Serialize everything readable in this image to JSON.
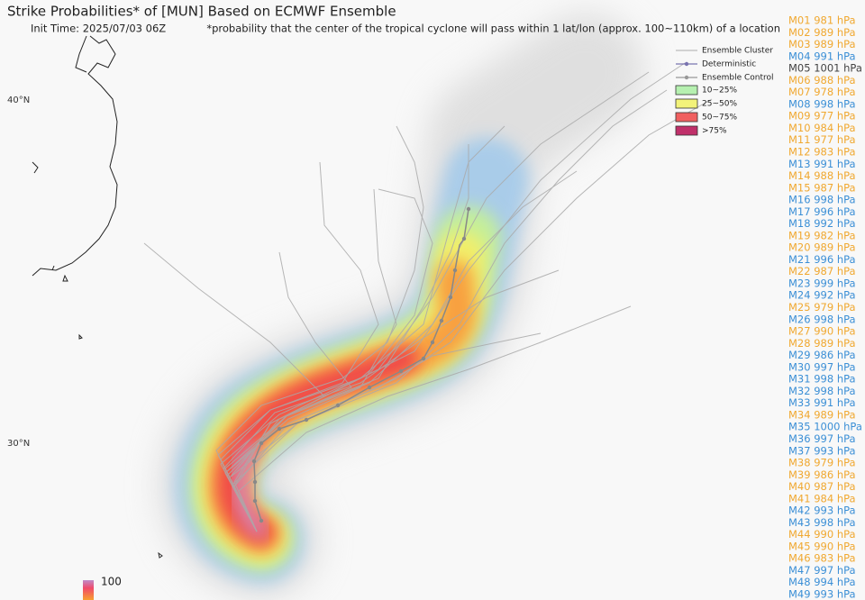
{
  "header": {
    "title": "Strike Probabilities* of [MUN] Based on ECMWF Ensemble",
    "init_time": "Init Time: 2025/07/03 06Z",
    "note": "*probability that the center of the tropical cyclone will pass within 1 lat/lon (approx. 100~110km) of a location"
  },
  "map": {
    "lat_labels": [
      "40°N",
      "30°N"
    ],
    "colorbar_label": "100"
  },
  "legend": {
    "lines": [
      {
        "label": "Ensemble Cluster",
        "color": "#bbbbbb"
      },
      {
        "label": "Deterministic",
        "color": "#7a74b0"
      },
      {
        "label": "Ensemble Control",
        "color": "#999999"
      }
    ],
    "bins": [
      {
        "label": "10~25%",
        "color": "#b6f0b0"
      },
      {
        "label": "25~50%",
        "color": "#f3f37a"
      },
      {
        "label": "50~75%",
        "color": "#f06060"
      },
      {
        "label": ">75%",
        "color": "#c0306a"
      }
    ]
  },
  "members": [
    {
      "label": "M01 981 hPa",
      "color": "#f0a830"
    },
    {
      "label": "M02 989 hPa",
      "color": "#f0a830"
    },
    {
      "label": "M03 989 hPa",
      "color": "#f0a830"
    },
    {
      "label": "M04 991 hPa",
      "color": "#3b8fd6"
    },
    {
      "label": "M05 1001 hPa",
      "color": "#444444"
    },
    {
      "label": "M06 988 hPa",
      "color": "#f0a830"
    },
    {
      "label": "M07 978 hPa",
      "color": "#f0a830"
    },
    {
      "label": "M08 998 hPa",
      "color": "#3b8fd6"
    },
    {
      "label": "M09 977 hPa",
      "color": "#f0a830"
    },
    {
      "label": "M10 984 hPa",
      "color": "#f0a830"
    },
    {
      "label": "M11 977 hPa",
      "color": "#f0a830"
    },
    {
      "label": "M12 983 hPa",
      "color": "#f0a830"
    },
    {
      "label": "M13 991 hPa",
      "color": "#3b8fd6"
    },
    {
      "label": "M14 988 hPa",
      "color": "#f0a830"
    },
    {
      "label": "M15 987 hPa",
      "color": "#f0a830"
    },
    {
      "label": "M16 998 hPa",
      "color": "#3b8fd6"
    },
    {
      "label": "M17 996 hPa",
      "color": "#3b8fd6"
    },
    {
      "label": "M18 992 hPa",
      "color": "#3b8fd6"
    },
    {
      "label": "M19 982 hPa",
      "color": "#f0a830"
    },
    {
      "label": "M20 989 hPa",
      "color": "#f0a830"
    },
    {
      "label": "M21 996 hPa",
      "color": "#3b8fd6"
    },
    {
      "label": "M22 987 hPa",
      "color": "#f0a830"
    },
    {
      "label": "M23 999 hPa",
      "color": "#3b8fd6"
    },
    {
      "label": "M24 992 hPa",
      "color": "#3b8fd6"
    },
    {
      "label": "M25 979 hPa",
      "color": "#f0a830"
    },
    {
      "label": "M26 998 hPa",
      "color": "#3b8fd6"
    },
    {
      "label": "M27 990 hPa",
      "color": "#f0a830"
    },
    {
      "label": "M28 989 hPa",
      "color": "#f0a830"
    },
    {
      "label": "M29 986 hPa",
      "color": "#3b8fd6"
    },
    {
      "label": "M30 997 hPa",
      "color": "#3b8fd6"
    },
    {
      "label": "M31 998 hPa",
      "color": "#3b8fd6"
    },
    {
      "label": "M32 998 hPa",
      "color": "#3b8fd6"
    },
    {
      "label": "M33 991 hPa",
      "color": "#3b8fd6"
    },
    {
      "label": "M34 989 hPa",
      "color": "#f0a830"
    },
    {
      "label": "M35 1000 hPa",
      "color": "#3b8fd6"
    },
    {
      "label": "M36 997 hPa",
      "color": "#3b8fd6"
    },
    {
      "label": "M37 993 hPa",
      "color": "#3b8fd6"
    },
    {
      "label": "M38 979 hPa",
      "color": "#f0a830"
    },
    {
      "label": "M39 986 hPa",
      "color": "#f0a830"
    },
    {
      "label": "M40 987 hPa",
      "color": "#f0a830"
    },
    {
      "label": "M41 984 hPa",
      "color": "#f0a830"
    },
    {
      "label": "M42 993 hPa",
      "color": "#3b8fd6"
    },
    {
      "label": "M43 998 hPa",
      "color": "#3b8fd6"
    },
    {
      "label": "M44 990 hPa",
      "color": "#f0a830"
    },
    {
      "label": "M45 990 hPa",
      "color": "#f0a830"
    },
    {
      "label": "M46 983 hPa",
      "color": "#f0a830"
    },
    {
      "label": "M47 997 hPa",
      "color": "#3b8fd6"
    },
    {
      "label": "M48 994 hPa",
      "color": "#3b8fd6"
    },
    {
      "label": "M49 993 hPa",
      "color": "#3b8fd6"
    }
  ]
}
